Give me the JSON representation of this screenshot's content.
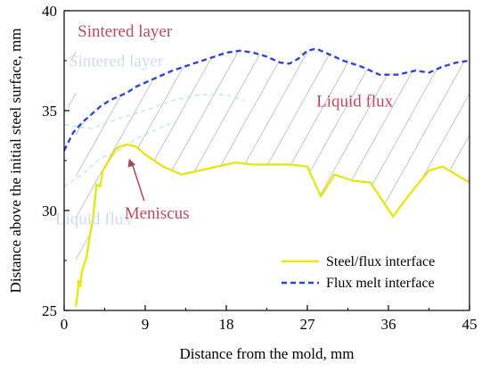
{
  "chart_data": {
    "type": "line",
    "xlabel": "Distance from the mold, mm",
    "ylabel": "Distance above the initial steel surface, mm",
    "xlim": [
      0,
      45
    ],
    "ylim": [
      25,
      40
    ],
    "xticks": [
      0,
      9,
      18,
      27,
      36,
      45
    ],
    "yticks": [
      25,
      30,
      35,
      40
    ],
    "legend_position": "bottom-right",
    "series": [
      {
        "name": "Steel/flux interface",
        "color": "#e6e619",
        "style": "solid",
        "x": [
          1.3,
          1.5,
          1.6,
          1.8,
          2.0,
          2.3,
          2.5,
          2.8,
          3.2,
          3.6,
          4.0,
          4.3,
          4.7,
          5.1,
          5.4,
          5.8,
          6.2,
          7.0,
          8.0,
          9.0,
          11.0,
          13.0,
          15.0,
          17.0,
          19.0,
          21.0,
          23.0,
          25.0,
          27.0,
          28.5,
          30.0,
          32.0,
          34.0,
          36.5,
          38.5,
          40.5,
          42.0,
          43.5,
          45.0
        ],
        "values": [
          25.2,
          25.9,
          26.5,
          26.2,
          27.0,
          27.4,
          27.7,
          28.6,
          29.6,
          31.3,
          31.2,
          32.0,
          32.3,
          32.6,
          32.8,
          33.1,
          33.2,
          33.3,
          33.2,
          32.8,
          32.2,
          31.8,
          32.0,
          32.2,
          32.4,
          32.3,
          32.3,
          32.3,
          32.2,
          30.7,
          31.8,
          31.5,
          31.4,
          29.7,
          30.9,
          32.0,
          32.2,
          31.8,
          31.4
        ]
      },
      {
        "name": "Flux melt interface",
        "color": "#2b44e0",
        "style": "dashed",
        "x": [
          0,
          1,
          2,
          3,
          4,
          5,
          6,
          7,
          8,
          9,
          10,
          12,
          14,
          16,
          18,
          19.5,
          21,
          22.5,
          24,
          25,
          26,
          27,
          28,
          29.5,
          31,
          33,
          35,
          37,
          39,
          40.5,
          42,
          43.5,
          45
        ],
        "values": [
          33.0,
          33.9,
          34.4,
          34.8,
          35.2,
          35.5,
          35.7,
          35.9,
          36.2,
          36.4,
          36.6,
          37.0,
          37.3,
          37.6,
          37.9,
          38.0,
          37.9,
          37.7,
          37.4,
          37.35,
          37.6,
          38.0,
          38.1,
          37.8,
          37.5,
          37.2,
          36.8,
          36.8,
          37.0,
          36.9,
          37.2,
          37.4,
          37.5
        ]
      }
    ],
    "annotations": [
      {
        "text": "Sintered layer",
        "x": 1.5,
        "y": 38.7,
        "color": "#c0485a",
        "style": "solid"
      },
      {
        "text": "Sintered layer",
        "x": 0.5,
        "y": 37.2,
        "color": "#c8d8ee",
        "style": "faded"
      },
      {
        "text": "Liquid flux",
        "x": 28.0,
        "y": 35.2,
        "color": "#c0485a",
        "style": "solid"
      },
      {
        "text": "Liquid flux",
        "x": -1.0,
        "y": 29.3,
        "color": "#c8d8ee",
        "style": "faded"
      },
      {
        "text": "Meniscus",
        "x": 6.7,
        "y": 29.6,
        "color": "#c0485a",
        "style": "solid",
        "arrow_to": [
          7.2,
          32.6
        ]
      }
    ],
    "hatch_region": {
      "between": [
        "Steel/flux interface",
        "Flux melt interface"
      ],
      "from_x": 1.3,
      "to_x": 45
    }
  }
}
